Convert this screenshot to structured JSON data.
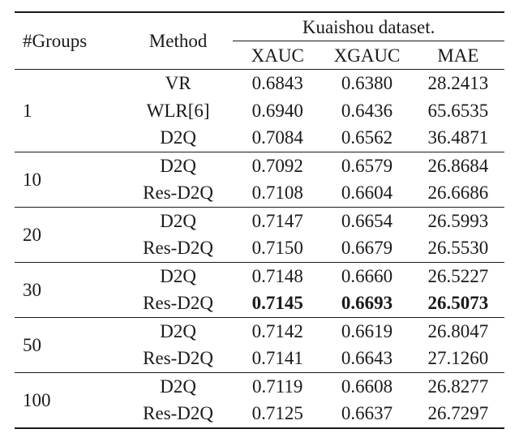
{
  "table": {
    "header": {
      "groups_label": "#Groups",
      "method_label": "Method",
      "dataset_label": "Kuaishou dataset.",
      "metrics": [
        "XAUC",
        "XGAUC",
        "MAE"
      ]
    },
    "blocks": [
      {
        "groups": "1",
        "rows": [
          {
            "method": "VR",
            "xauc": "0.6843",
            "xgauc": "0.6380",
            "mae": "28.2413"
          },
          {
            "method": "WLR[6]",
            "xauc": "0.6940",
            "xgauc": "0.6436",
            "mae": "65.6535"
          },
          {
            "method": "D2Q",
            "xauc": "0.7084",
            "xgauc": "0.6562",
            "mae": "36.4871"
          }
        ]
      },
      {
        "groups": "10",
        "rows": [
          {
            "method": "D2Q",
            "xauc": "0.7092",
            "xgauc": "0.6579",
            "mae": "26.8684"
          },
          {
            "method": "Res-D2Q",
            "xauc": "0.7108",
            "xgauc": "0.6604",
            "mae": "26.6686"
          }
        ]
      },
      {
        "groups": "20",
        "rows": [
          {
            "method": "D2Q",
            "xauc": "0.7147",
            "xgauc": "0.6654",
            "mae": "26.5993"
          },
          {
            "method": "Res-D2Q",
            "xauc": "0.7150",
            "xgauc": "0.6679",
            "mae": "26.5530"
          }
        ]
      },
      {
        "groups": "30",
        "rows": [
          {
            "method": "D2Q",
            "xauc": "0.7148",
            "xgauc": "0.6660",
            "mae": "26.5227"
          },
          {
            "method": "Res-D2Q",
            "xauc": "0.7145",
            "xgauc": "0.6693",
            "mae": "26.5073",
            "bold": true
          }
        ]
      },
      {
        "groups": "50",
        "rows": [
          {
            "method": "D2Q",
            "xauc": "0.7142",
            "xgauc": "0.6619",
            "mae": "26.8047"
          },
          {
            "method": "Res-D2Q",
            "xauc": "0.7141",
            "xgauc": "0.6643",
            "mae": "27.1260"
          }
        ]
      },
      {
        "groups": "100",
        "rows": [
          {
            "method": "D2Q",
            "xauc": "0.7119",
            "xgauc": "0.6608",
            "mae": "26.8277"
          },
          {
            "method": "Res-D2Q",
            "xauc": "0.7125",
            "xgauc": "0.6637",
            "mae": "26.7297"
          }
        ]
      }
    ]
  }
}
